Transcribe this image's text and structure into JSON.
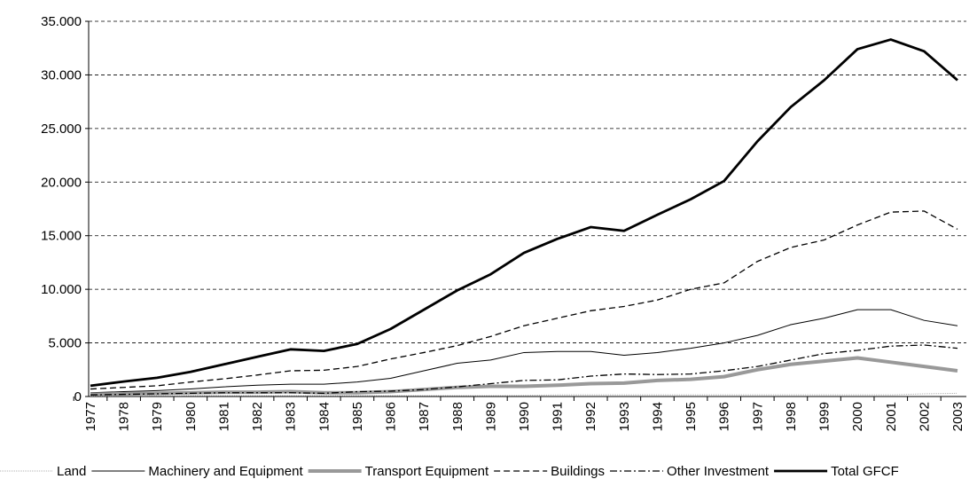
{
  "chart_data": {
    "type": "line",
    "categories": [
      "1977",
      "1978",
      "1979",
      "1980",
      "1981",
      "1982",
      "1983",
      "1984",
      "1985",
      "1986",
      "1987",
      "1988",
      "1989",
      "1990",
      "1991",
      "1992",
      "1993",
      "1994",
      "1995",
      "1996",
      "1997",
      "1998",
      "1999",
      "2000",
      "2001",
      "2002",
      "2003"
    ],
    "series": [
      {
        "name": "Land",
        "color": "#b0b0b0",
        "width": 1,
        "dash": "1 1",
        "values": [
          50,
          60,
          70,
          80,
          80,
          80,
          80,
          80,
          80,
          80,
          80,
          80,
          80,
          100,
          150,
          150,
          150,
          150,
          150,
          150,
          150,
          150,
          150,
          150,
          150,
          250,
          300
        ]
      },
      {
        "name": "Machinery and Equipment",
        "color": "#000000",
        "width": 1,
        "dash": "none",
        "values": [
          350,
          450,
          550,
          700,
          900,
          1050,
          1150,
          1150,
          1350,
          1700,
          2400,
          3100,
          3400,
          4100,
          4200,
          4200,
          3850,
          4100,
          4500,
          5000,
          5700,
          6700,
          7300,
          8100,
          8100,
          7100,
          6600
        ]
      },
      {
        "name": "Transport Equipment",
        "color": "#999999",
        "width": 4,
        "dash": "none",
        "values": [
          200,
          250,
          300,
          350,
          400,
          400,
          450,
          350,
          350,
          450,
          650,
          850,
          950,
          950,
          1050,
          1200,
          1250,
          1500,
          1600,
          1850,
          2500,
          3000,
          3300,
          3600,
          3200,
          2800,
          2400
        ]
      },
      {
        "name": "Buildings",
        "color": "#000000",
        "width": 1.3,
        "dash": "7 4",
        "values": [
          700,
          850,
          1000,
          1350,
          1650,
          2000,
          2400,
          2450,
          2800,
          3500,
          4100,
          4750,
          5600,
          6600,
          7300,
          8000,
          8400,
          9000,
          10000,
          10600,
          12600,
          13900,
          14600,
          16000,
          17200,
          17300,
          15600
        ]
      },
      {
        "name": "Other Investment",
        "color": "#000000",
        "width": 1.3,
        "dash": "8 3 2 3",
        "values": [
          150,
          200,
          250,
          300,
          350,
          350,
          350,
          300,
          450,
          500,
          650,
          900,
          1200,
          1500,
          1550,
          1900,
          2100,
          2050,
          2100,
          2400,
          2800,
          3400,
          4000,
          4300,
          4700,
          4800,
          4500
        ]
      },
      {
        "name": "Total GFCF",
        "color": "#000000",
        "width": 2.8,
        "dash": "none",
        "values": [
          1000,
          1400,
          1750,
          2300,
          3000,
          3700,
          4400,
          4250,
          4900,
          6300,
          8100,
          9900,
          11400,
          13400,
          14700,
          15800,
          15450,
          16950,
          18400,
          20100,
          23800,
          27000,
          29500,
          32400,
          33300,
          32200,
          29500
        ]
      }
    ],
    "ylim": [
      0,
      35000
    ],
    "yticks": [
      0,
      {
        "value": 5000,
        "label": "5.000"
      },
      {
        "value": 10000,
        "label": "10.000"
      },
      {
        "value": 15000,
        "label": "15.000"
      },
      {
        "value": 20000,
        "label": "20.000"
      },
      {
        "value": 25000,
        "label": "25.000"
      },
      {
        "value": 30000,
        "label": "30.000"
      },
      {
        "value": 35000,
        "label": "35.000"
      }
    ],
    "grid": true,
    "legend": "bottom"
  }
}
